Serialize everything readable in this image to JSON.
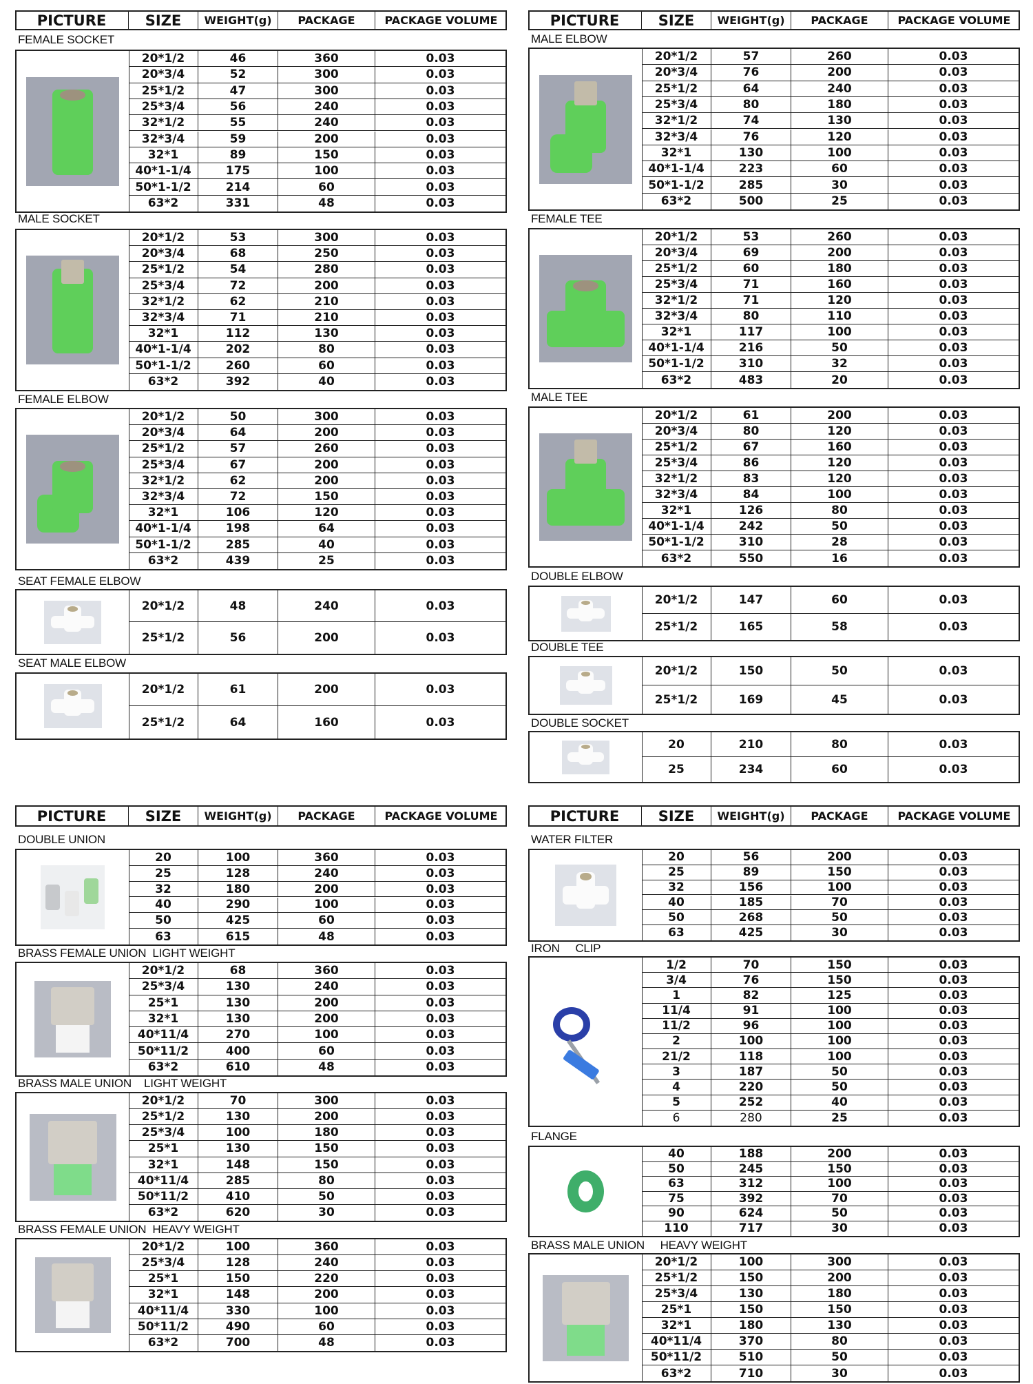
{
  "headers": [
    "PICTURE",
    "SIZE",
    "WEIGHT(g)",
    "PACKAGE",
    "PACKAGE VOLUME"
  ],
  "colors": {
    "border": "#222222",
    "green_fitting": "#5fcf5a",
    "photo_background": "#a2a6b2",
    "clip_blue": "#2a3fa8"
  },
  "blocks": [
    {
      "sections": [
        {
          "title": "FEMALE SOCKET",
          "image": "green-female-socket",
          "rows": [
            [
              "20*1/2",
              "46",
              "360",
              "0.03"
            ],
            [
              "20*3/4",
              "52",
              "300",
              "0.03"
            ],
            [
              "25*1/2",
              "47",
              "300",
              "0.03"
            ],
            [
              "25*3/4",
              "56",
              "240",
              "0.03"
            ],
            [
              "32*1/2",
              "55",
              "240",
              "0.03"
            ],
            [
              "32*3/4",
              "59",
              "200",
              "0.03"
            ],
            [
              "32*1",
              "89",
              "150",
              "0.03"
            ],
            [
              "40*1-1/4",
              "175",
              "100",
              "0.03"
            ],
            [
              "50*1-1/2",
              "214",
              "60",
              "0.03"
            ],
            [
              "63*2",
              "331",
              "48",
              "0.03"
            ]
          ]
        },
        {
          "title": "MALE SOCKET",
          "image": "green-male-socket",
          "rows": [
            [
              "20*1/2",
              "53",
              "300",
              "0.03"
            ],
            [
              "20*3/4",
              "68",
              "250",
              "0.03"
            ],
            [
              "25*1/2",
              "54",
              "280",
              "0.03"
            ],
            [
              "25*3/4",
              "72",
              "200",
              "0.03"
            ],
            [
              "32*1/2",
              "62",
              "210",
              "0.03"
            ],
            [
              "32*3/4",
              "71",
              "210",
              "0.03"
            ],
            [
              "32*1",
              "112",
              "130",
              "0.03"
            ],
            [
              "40*1-1/4",
              "202",
              "80",
              "0.03"
            ],
            [
              "50*1-1/2",
              "260",
              "60",
              "0.03"
            ],
            [
              "63*2",
              "392",
              "40",
              "0.03"
            ]
          ]
        },
        {
          "title": "FEMALE ELBOW",
          "image": "green-female-elbow",
          "rows": [
            [
              "20*1/2",
              "50",
              "300",
              "0.03"
            ],
            [
              "20*3/4",
              "64",
              "200",
              "0.03"
            ],
            [
              "25*1/2",
              "57",
              "260",
              "0.03"
            ],
            [
              "25*3/4",
              "67",
              "200",
              "0.03"
            ],
            [
              "32*1/2",
              "62",
              "200",
              "0.03"
            ],
            [
              "32*3/4",
              "72",
              "150",
              "0.03"
            ],
            [
              "32*1",
              "106",
              "120",
              "0.03"
            ],
            [
              "40*1-1/4",
              "198",
              "64",
              "0.03"
            ],
            [
              "50*1-1/2",
              "285",
              "40",
              "0.03"
            ],
            [
              "63*2",
              "439",
              "25",
              "0.03"
            ]
          ]
        },
        {
          "title": "SEAT FEMALE ELBOW",
          "image": "white-seat-elbow",
          "rows": [
            [
              "20*1/2",
              "48",
              "240",
              "0.03"
            ],
            [
              "25*1/2",
              "56",
              "200",
              "0.03"
            ]
          ]
        },
        {
          "title": "SEAT MALE ELBOW",
          "image": "white-seat-elbow",
          "rows": [
            [
              "20*1/2",
              "61",
              "200",
              "0.03"
            ],
            [
              "25*1/2",
              "64",
              "160",
              "0.03"
            ]
          ]
        }
      ]
    },
    {
      "sections": [
        {
          "title": "MALE ELBOW",
          "image": "green-male-elbow",
          "rows": [
            [
              "20*1/2",
              "57",
              "260",
              "0.03"
            ],
            [
              "20*3/4",
              "76",
              "200",
              "0.03"
            ],
            [
              "25*1/2",
              "64",
              "240",
              "0.03"
            ],
            [
              "25*3/4",
              "80",
              "180",
              "0.03"
            ],
            [
              "32*1/2",
              "74",
              "130",
              "0.03"
            ],
            [
              "32*3/4",
              "76",
              "120",
              "0.03"
            ],
            [
              "32*1",
              "130",
              "100",
              "0.03"
            ],
            [
              "40*1-1/4",
              "223",
              "60",
              "0.03"
            ],
            [
              "50*1-1/2",
              "285",
              "30",
              "0.03"
            ],
            [
              "63*2",
              "500",
              "25",
              "0.03"
            ]
          ]
        },
        {
          "title": "FEMALE TEE",
          "image": "green-female-tee",
          "rows": [
            [
              "20*1/2",
              "53",
              "260",
              "0.03"
            ],
            [
              "20*3/4",
              "69",
              "200",
              "0.03"
            ],
            [
              "25*1/2",
              "60",
              "180",
              "0.03"
            ],
            [
              "25*3/4",
              "71",
              "160",
              "0.03"
            ],
            [
              "32*1/2",
              "71",
              "120",
              "0.03"
            ],
            [
              "32*3/4",
              "80",
              "110",
              "0.03"
            ],
            [
              "32*1",
              "117",
              "100",
              "0.03"
            ],
            [
              "40*1-1/4",
              "216",
              "50",
              "0.03"
            ],
            [
              "50*1-1/2",
              "310",
              "32",
              "0.03"
            ],
            [
              "63*2",
              "483",
              "20",
              "0.03"
            ]
          ]
        },
        {
          "title": "MALE TEE",
          "image": "green-male-tee",
          "rows": [
            [
              "20*1/2",
              "61",
              "200",
              "0.03"
            ],
            [
              "20*3/4",
              "80",
              "120",
              "0.03"
            ],
            [
              "25*1/2",
              "67",
              "160",
              "0.03"
            ],
            [
              "25*3/4",
              "86",
              "120",
              "0.03"
            ],
            [
              "32*1/2",
              "83",
              "120",
              "0.03"
            ],
            [
              "32*3/4",
              "84",
              "100",
              "0.03"
            ],
            [
              "32*1",
              "126",
              "80",
              "0.03"
            ],
            [
              "40*1-1/4",
              "242",
              "50",
              "0.03"
            ],
            [
              "50*1-1/2",
              "310",
              "28",
              "0.03"
            ],
            [
              "63*2",
              "550",
              "16",
              "0.03"
            ]
          ]
        },
        {
          "title": "DOUBLE ELBOW",
          "image": "white-double-fitting",
          "rows": [
            [
              "20*1/2",
              "147",
              "60",
              "0.03"
            ],
            [
              "25*1/2",
              "165",
              "58",
              "0.03"
            ]
          ]
        },
        {
          "title": "DOUBLE TEE",
          "image": "white-double-fitting",
          "rows": [
            [
              "20*1/2",
              "150",
              "50",
              "0.03"
            ],
            [
              "25*1/2",
              "169",
              "45",
              "0.03"
            ]
          ]
        },
        {
          "title": "DOUBLE SOCKET",
          "image": "white-double-fitting",
          "rows": [
            [
              "20",
              "210",
              "80",
              "0.03"
            ],
            [
              "25",
              "234",
              "60",
              "0.03"
            ]
          ]
        }
      ]
    },
    {
      "sections": [
        {
          "title": "DOUBLE UNION",
          "image": "double-union-set",
          "rows": [
            [
              "20",
              "100",
              "360",
              "0.03"
            ],
            [
              "25",
              "128",
              "240",
              "0.03"
            ],
            [
              "32",
              "180",
              "200",
              "0.03"
            ],
            [
              "40",
              "290",
              "100",
              "0.03"
            ],
            [
              "50",
              "425",
              "60",
              "0.03"
            ],
            [
              "63",
              "615",
              "48",
              "0.03"
            ]
          ]
        },
        {
          "title": "BRASS FEMALE UNION  LIGHT WEIGHT",
          "image": "brass-union-white",
          "rows": [
            [
              "20*1/2",
              "68",
              "360",
              "0.03"
            ],
            [
              "25*3/4",
              "130",
              "240",
              "0.03"
            ],
            [
              "25*1",
              "130",
              "200",
              "0.03"
            ],
            [
              "32*1",
              "130",
              "200",
              "0.03"
            ],
            [
              "40*11/4",
              "270",
              "100",
              "0.03"
            ],
            [
              "50*11/2",
              "400",
              "60",
              "0.03"
            ],
            [
              "63*2",
              "610",
              "48",
              "0.03"
            ]
          ]
        },
        {
          "title": "BRASS MALE UNION    LIGHT WEIGHT",
          "image": "brass-union-green",
          "rows": [
            [
              "20*1/2",
              "70",
              "300",
              "0.03"
            ],
            [
              "25*1/2",
              "130",
              "200",
              "0.03"
            ],
            [
              "25*3/4",
              "100",
              "180",
              "0.03"
            ],
            [
              "25*1",
              "130",
              "150",
              "0.03"
            ],
            [
              "32*1",
              "148",
              "150",
              "0.03"
            ],
            [
              "40*11/4",
              "285",
              "80",
              "0.03"
            ],
            [
              "50*11/2",
              "410",
              "50",
              "0.03"
            ],
            [
              "63*2",
              "620",
              "30",
              "0.03"
            ]
          ]
        },
        {
          "title": "BRASS FEMALE UNION  HEAVY WEIGHT",
          "image": "brass-union-white",
          "rows": [
            [
              "20*1/2",
              "100",
              "360",
              "0.03"
            ],
            [
              "25*3/4",
              "128",
              "240",
              "0.03"
            ],
            [
              "25*1",
              "150",
              "220",
              "0.03"
            ],
            [
              "32*1",
              "148",
              "200",
              "0.03"
            ],
            [
              "40*11/4",
              "330",
              "100",
              "0.03"
            ],
            [
              "50*11/2",
              "490",
              "60",
              "0.03"
            ],
            [
              "63*2",
              "700",
              "48",
              "0.03"
            ]
          ]
        }
      ]
    },
    {
      "sections": [
        {
          "title": "WATER FILTER",
          "image": "white-water-filter",
          "rows": [
            [
              "20",
              "56",
              "200",
              "0.03"
            ],
            [
              "25",
              "89",
              "150",
              "0.03"
            ],
            [
              "32",
              "156",
              "100",
              "0.03"
            ],
            [
              "40",
              "185",
              "70",
              "0.03"
            ],
            [
              "50",
              "268",
              "50",
              "0.03"
            ],
            [
              "63",
              "425",
              "30",
              "0.03"
            ]
          ]
        },
        {
          "title": "IRON     CLIP",
          "image": "iron-pipe-clip",
          "rows": [
            [
              "1/2",
              "70",
              "150",
              "0.03"
            ],
            [
              "3/4",
              "76",
              "150",
              "0.03"
            ],
            [
              "1",
              "82",
              "125",
              "0.03"
            ],
            [
              "11/4",
              "91",
              "100",
              "0.03"
            ],
            [
              "11/2",
              "96",
              "100",
              "0.03"
            ],
            [
              "2",
              "100",
              "100",
              "0.03"
            ],
            [
              "21/2",
              "118",
              "100",
              "0.03"
            ],
            [
              "3",
              "187",
              "50",
              "0.03"
            ],
            [
              "4",
              "220",
              "50",
              "0.03"
            ],
            [
              "5",
              "252",
              "40",
              "0.03"
            ],
            [
              "6",
              "280",
              "25",
              "0.03"
            ]
          ]
        },
        {
          "title": "FLANGE",
          "image": "green-flange",
          "rows": [
            [
              "40",
              "188",
              "200",
              "0.03"
            ],
            [
              "50",
              "245",
              "150",
              "0.03"
            ],
            [
              "63",
              "312",
              "100",
              "0.03"
            ],
            [
              "75",
              "392",
              "70",
              "0.03"
            ],
            [
              "90",
              "624",
              "50",
              "0.03"
            ],
            [
              "110",
              "717",
              "30",
              "0.03"
            ]
          ]
        },
        {
          "title": "BRASS MALE UNION     HEAVY WEIGHT",
          "image": "brass-union-green",
          "rows": [
            [
              "20*1/2",
              "100",
              "300",
              "0.03"
            ],
            [
              "25*1/2",
              "150",
              "200",
              "0.03"
            ],
            [
              "25*3/4",
              "130",
              "180",
              "0.03"
            ],
            [
              "25*1",
              "150",
              "150",
              "0.03"
            ],
            [
              "32*1",
              "180",
              "130",
              "0.03"
            ],
            [
              "40*11/4",
              "370",
              "80",
              "0.03"
            ],
            [
              "50*11/2",
              "510",
              "50",
              "0.03"
            ],
            [
              "63*2",
              "710",
              "30",
              "0.03"
            ]
          ]
        }
      ]
    }
  ]
}
